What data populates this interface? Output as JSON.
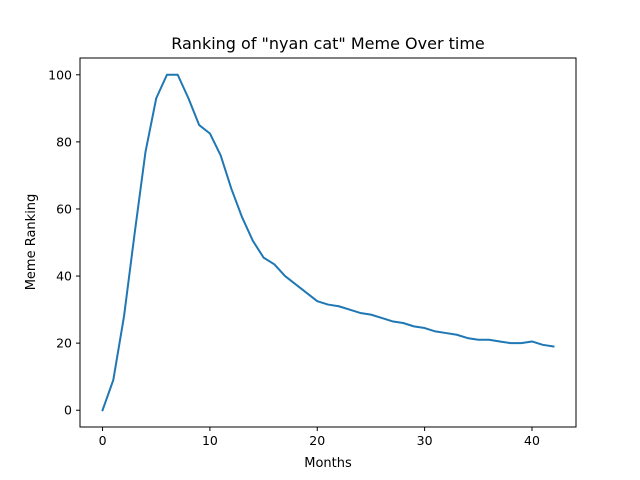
{
  "chart_data": {
    "type": "line",
    "title": "Ranking of \"nyan cat\" Meme Over time",
    "xlabel": "Months",
    "ylabel": "Meme Ranking",
    "xlim": [
      -2.1,
      44.1
    ],
    "ylim": [
      -5,
      105
    ],
    "xticks": [
      0,
      10,
      20,
      30,
      40
    ],
    "yticks": [
      0,
      20,
      40,
      60,
      80,
      100
    ],
    "grid": false,
    "color": "#1f77b4",
    "series": [
      {
        "x": [
          0,
          1,
          2,
          3,
          4,
          5,
          6,
          7,
          8,
          9,
          10,
          11,
          12,
          13,
          14,
          15,
          16,
          17,
          18,
          19,
          20,
          21,
          22,
          23,
          24,
          25,
          26,
          27,
          28,
          29,
          30,
          31,
          32,
          33,
          34,
          35,
          36,
          37,
          38,
          39,
          40,
          41,
          42
        ],
        "values": [
          0,
          9,
          28,
          53,
          77,
          93,
          100,
          100,
          93,
          85,
          82.5,
          76,
          66,
          57.5,
          50.5,
          45.5,
          43.5,
          40,
          37.5,
          35,
          32.5,
          31.5,
          31,
          30,
          29,
          28.5,
          27.5,
          26.5,
          26,
          25,
          24.5,
          23.5,
          23,
          22.5,
          21.5,
          21,
          21,
          20.5,
          20,
          20,
          20.5,
          19.5,
          19
        ]
      }
    ]
  }
}
